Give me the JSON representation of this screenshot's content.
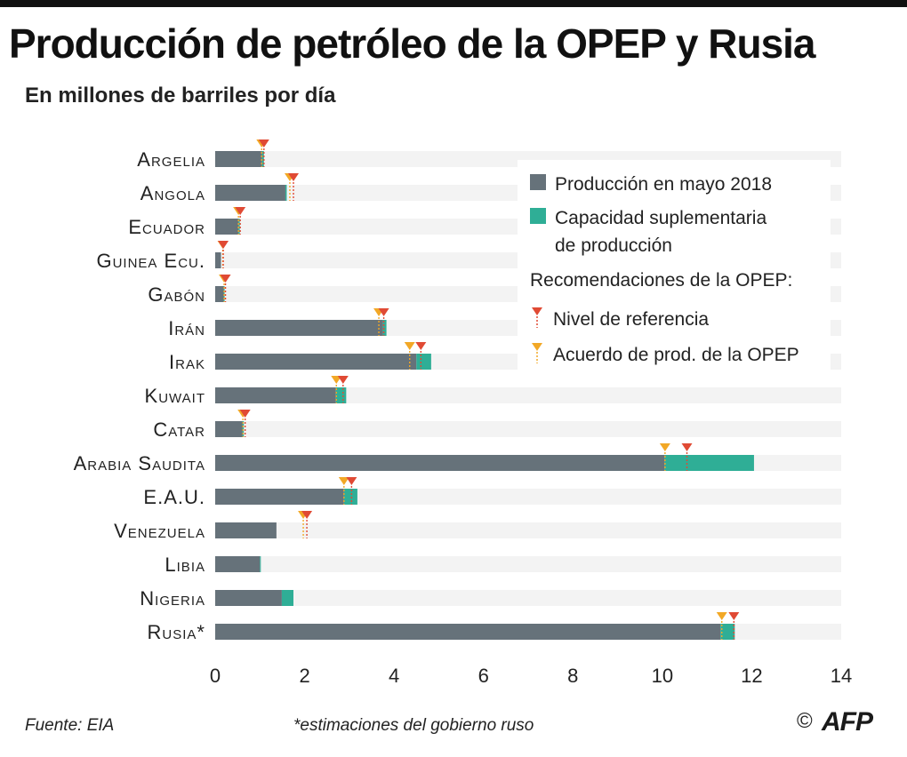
{
  "title": "Producción de petróleo de la OPEP y Rusia",
  "subtitle": "En millones de barriles por día",
  "colors": {
    "production": "#66727a",
    "spare_capacity": "#2fae96",
    "track": "#f3f3f3",
    "reference_marker": "#e04a34",
    "agreement_marker": "#f2a826"
  },
  "legend": {
    "production": "Producción en mayo 2018",
    "spare_capacity_line1": "Capacidad suplementaria",
    "spare_capacity_line2": "de producción",
    "recommendations_heading": "Recomendaciones de la OPEP:",
    "reference_level": "Nivel de referencia",
    "agreement": "Acuerdo de prod. de la OPEP"
  },
  "chart_data": {
    "type": "bar",
    "orientation": "horizontal",
    "stacked": true,
    "categories": [
      "Argelia",
      "Angola",
      "Ecuador",
      "Guinea Ecu.",
      "Gabón",
      "Irán",
      "Irak",
      "Kuwait",
      "Catar",
      "Arabia Saudita",
      "E.A.U.",
      "Venezuela",
      "Libia",
      "Nigeria",
      "Rusia*"
    ],
    "series": [
      {
        "name": "Producción en mayo 2018",
        "values": [
          1.05,
          1.57,
          0.52,
          0.13,
          0.19,
          3.75,
          4.5,
          2.7,
          0.61,
          10.05,
          2.88,
          1.37,
          1.0,
          1.49,
          11.3
        ]
      },
      {
        "name": "Capacidad suplementaria de producción",
        "values": [
          0.04,
          0.03,
          0.03,
          0.0,
          0.02,
          0.08,
          0.33,
          0.23,
          0.03,
          2.0,
          0.3,
          0.0,
          0.02,
          0.26,
          0.32
        ]
      }
    ],
    "markers": [
      {
        "name": "Nivel de referencia",
        "values": [
          1.09,
          1.75,
          0.56,
          0.18,
          0.23,
          3.77,
          4.6,
          2.86,
          0.67,
          10.55,
          3.05,
          2.05,
          null,
          null,
          11.6
        ]
      },
      {
        "name": "Acuerdo de prod. de la OPEP",
        "values": [
          1.04,
          1.67,
          0.52,
          0.17,
          0.2,
          3.66,
          4.35,
          2.71,
          0.62,
          10.06,
          2.88,
          1.97,
          null,
          null,
          11.33
        ]
      }
    ],
    "xlim": [
      0,
      14
    ],
    "xticks": [
      0,
      2,
      4,
      6,
      8,
      10,
      12,
      14
    ],
    "xlabel": "",
    "ylabel": "",
    "grid": false,
    "legend_position": "top-right"
  },
  "footer": {
    "source": "Fuente: EIA",
    "note": "*estimaciones del gobierno ruso",
    "copyright": "©",
    "logo": "AFP"
  }
}
